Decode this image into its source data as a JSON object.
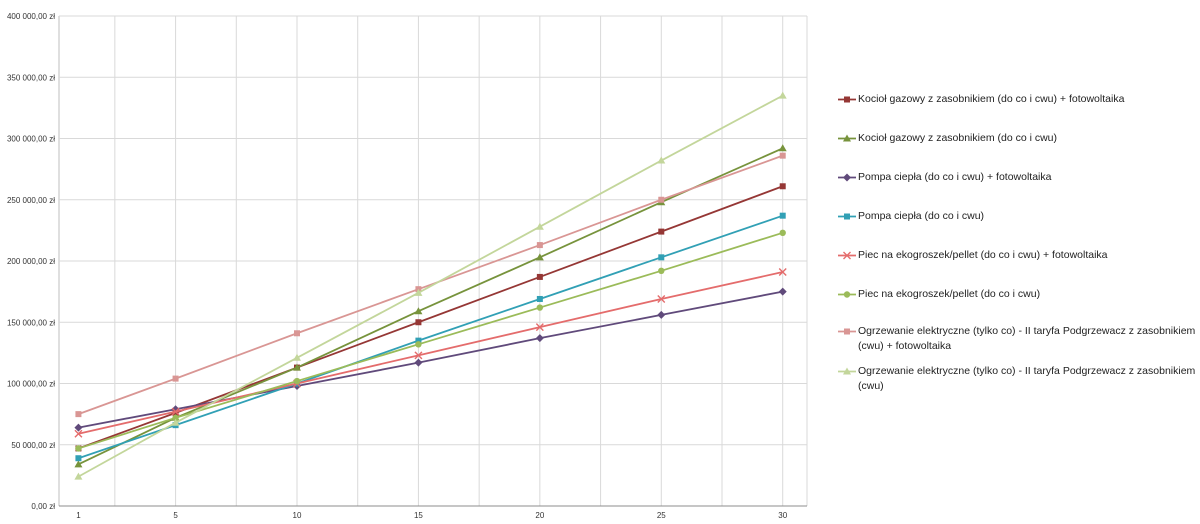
{
  "chart_data": {
    "type": "line",
    "x": [
      1,
      5,
      10,
      15,
      20,
      25,
      30
    ],
    "x_tick_labels": [
      "1",
      "5",
      "10",
      "15",
      "20",
      "25",
      "30"
    ],
    "ylim": [
      0,
      400000
    ],
    "y_tick_values": [
      0,
      50000,
      100000,
      150000,
      200000,
      250000,
      300000,
      350000,
      400000
    ],
    "y_tick_labels": [
      "0,00 zł",
      "50 000,00 zł",
      "100 000,00 zł",
      "150 000,00 zł",
      "200 000,00 zł",
      "250 000,00 zł",
      "300 000,00 zł",
      "350 000,00 zł",
      "400 000,00 zł"
    ],
    "grid": true,
    "legend_position": "right",
    "series": [
      {
        "name": "Kocioł gazowy z zasobnikiem (do co i cwu) + fotowoltaika",
        "color": "#953735",
        "marker": "square",
        "values": [
          47000,
          76000,
          113000,
          150000,
          187000,
          224000,
          261000
        ]
      },
      {
        "name": "Kocioł gazowy z zasobnikiem (do co i cwu)",
        "color": "#77933c",
        "marker": "triangle",
        "values": [
          34000,
          72000,
          113000,
          159000,
          203000,
          248000,
          292000
        ]
      },
      {
        "name": "Pompa ciepła (do co i cwu) + fotowoltaika",
        "color": "#604a7b",
        "marker": "diamond",
        "values": [
          64000,
          79000,
          98000,
          117000,
          137000,
          156000,
          175000
        ]
      },
      {
        "name": "Pompa ciepła (do co i cwu)",
        "color": "#31a0b5",
        "marker": "square",
        "values": [
          39000,
          66000,
          100000,
          135000,
          169000,
          203000,
          237000
        ]
      },
      {
        "name": "Piec na ekogroszek/pellet (do co i cwu) + fotowoltaika",
        "color": "#e46c6c",
        "marker": "x",
        "values": [
          59000,
          77000,
          100000,
          123000,
          146000,
          169000,
          191000
        ]
      },
      {
        "name": "Piec na ekogroszek/pellet (do co i cwu)",
        "color": "#9bbb59",
        "marker": "circle",
        "values": [
          47000,
          72000,
          102000,
          132000,
          162000,
          192000,
          223000
        ]
      },
      {
        "name": "Ogrzewanie elektryczne (tylko co) - II taryfa Podgrzewacz z zasobnikiem (cwu) + fotowoltaika",
        "color": "#d99694",
        "marker": "square",
        "values": [
          75000,
          104000,
          141000,
          177000,
          213000,
          250000,
          286000
        ]
      },
      {
        "name": "Ogrzewanie elektryczne (tylko co) - II taryfa Podgrzewacz z zasobnikiem (cwu)",
        "color": "#c3d69b",
        "marker": "triangle",
        "values": [
          24000,
          68000,
          121000,
          174000,
          228000,
          282000,
          335000
        ]
      }
    ]
  }
}
